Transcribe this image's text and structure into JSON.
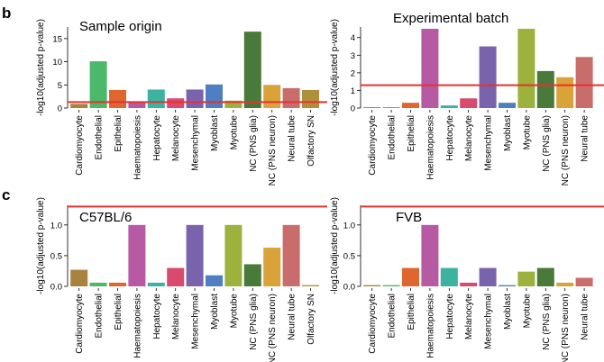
{
  "figure": {
    "panel_b": "b",
    "panel_c": "c"
  },
  "chart_data": [
    {
      "type": "bar",
      "panel": "b",
      "title": "Sample origin",
      "ylabel": "-log10(adjusted p-value)",
      "ylim": [
        0,
        17.5
      ],
      "yticks": [
        "0",
        "5",
        "10",
        "15"
      ],
      "ytick_values": [
        0,
        5,
        10,
        15
      ],
      "threshold": 1.3,
      "threshold_color": "#e8312f",
      "categories": [
        "Cardiomyocyte",
        "Endothelial",
        "Epithelial",
        "Haematopoiesis",
        "Hepatocyte",
        "Melanocyte",
        "Mesenchymal",
        "Myoblast",
        "Myotube",
        "NC (PNS glia)",
        "NC (PNS neuron)",
        "Neural tube",
        "Olfactory SN"
      ],
      "values": [
        0.9,
        10.1,
        3.9,
        1.4,
        4.0,
        2.1,
        4.0,
        5.1,
        1.6,
        16.5,
        5.0,
        4.3,
        3.9
      ],
      "colors": [
        "#a8823e",
        "#4cb86a",
        "#e0662f",
        "#b55aa3",
        "#3bb3a0",
        "#d94a6e",
        "#7a63ad",
        "#4f7fc0",
        "#9cb23c",
        "#4a7a3a",
        "#d9a33a",
        "#c96c6c",
        "#b08f3a"
      ]
    },
    {
      "type": "bar",
      "panel": "b",
      "title": "Experimental batch",
      "ylabel": "-log10(adjusted p-value)",
      "ylim": [
        0,
        4.6
      ],
      "yticks": [
        "0",
        "1",
        "2",
        "3",
        "4"
      ],
      "ytick_values": [
        0,
        1,
        2,
        3,
        4
      ],
      "threshold": 1.3,
      "threshold_color": "#e8312f",
      "categories": [
        "Cardiomyocyte",
        "Endothelial",
        "Epithelial",
        "Haematopoiesis",
        "Hepatocyte",
        "Melanocyte",
        "Mesenchymal",
        "Myoblast",
        "Myotube",
        "NC (PNS glia)",
        "NC (PNS neuron)",
        "Neural tube"
      ],
      "values": [
        0.05,
        0.05,
        0.3,
        4.5,
        0.15,
        0.55,
        3.5,
        0.3,
        4.5,
        2.1,
        1.75,
        2.9
      ],
      "colors": [
        "#a8823e",
        "#4cb86a",
        "#e0662f",
        "#b55aa3",
        "#3bb3a0",
        "#d94a6e",
        "#7a63ad",
        "#4f7fc0",
        "#9cb23c",
        "#4a7a3a",
        "#d9a33a",
        "#c96c6c"
      ]
    },
    {
      "type": "bar",
      "panel": "c",
      "title": "C57BL/6",
      "ylabel": "-log10(adjusted p-value)",
      "ylim": [
        0,
        1.32
      ],
      "yticks": [
        "0.0",
        "0.5",
        "1.0"
      ],
      "ytick_values": [
        0,
        0.5,
        1.0
      ],
      "threshold": 1.3,
      "threshold_color": "#e8312f",
      "categories": [
        "Cardiomyocyte",
        "Endothelial",
        "Epithelial",
        "Haematopoiesis",
        "Hepatocyte",
        "Melanocyte",
        "Mesenchymal",
        "Myoblast",
        "Myotube",
        "NC (PNS glia)",
        "NC (PNS neuron)",
        "Neural tube",
        "Olfactory SN"
      ],
      "values": [
        0.27,
        0.06,
        0.06,
        1.0,
        0.06,
        0.3,
        1.0,
        0.18,
        1.0,
        0.36,
        0.63,
        1.0,
        0.02
      ],
      "colors": [
        "#a8823e",
        "#4cb86a",
        "#e0662f",
        "#b55aa3",
        "#3bb3a0",
        "#d94a6e",
        "#7a63ad",
        "#4f7fc0",
        "#9cb23c",
        "#4a7a3a",
        "#d9a33a",
        "#c96c6c",
        "#b08f3a"
      ]
    },
    {
      "type": "bar",
      "panel": "c",
      "title": "FVB",
      "ylabel": "-log10(adjusted p-value)",
      "ylim": [
        0,
        1.32
      ],
      "yticks": [
        "0.0",
        "0.5",
        "1.0"
      ],
      "ytick_values": [
        0,
        0.5,
        1.0
      ],
      "threshold": 1.3,
      "threshold_color": "#e8312f",
      "categories": [
        "Cardiomyocyte",
        "Endothelial",
        "Epithelial",
        "Haematopoiesis",
        "Hepatocyte",
        "Melanocyte",
        "Mesenchymal",
        "Myoblast",
        "Myotube",
        "NC (PNS glia)",
        "NC (PNS neuron)",
        "Neural tube"
      ],
      "values": [
        0.02,
        0.02,
        0.3,
        1.0,
        0.3,
        0.06,
        0.3,
        0.02,
        0.24,
        0.3,
        0.06,
        0.14
      ],
      "colors": [
        "#a8823e",
        "#4cb86a",
        "#e0662f",
        "#b55aa3",
        "#3bb3a0",
        "#d94a6e",
        "#7a63ad",
        "#4f7fc0",
        "#9cb23c",
        "#4a7a3a",
        "#d9a33a",
        "#c96c6c"
      ]
    }
  ]
}
